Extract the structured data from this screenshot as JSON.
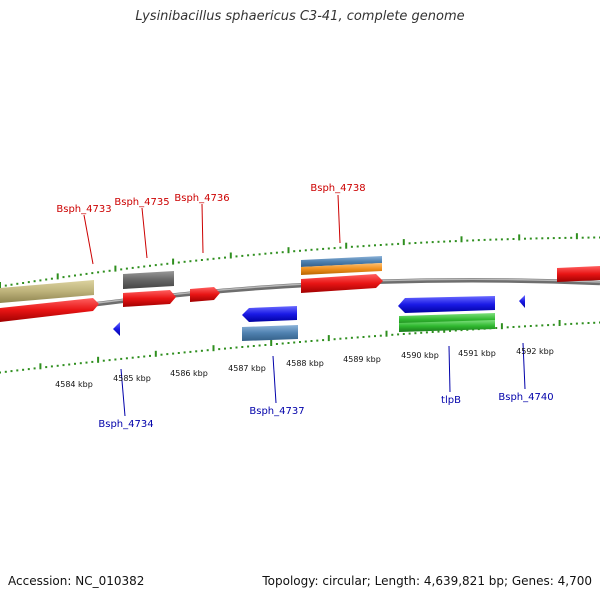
{
  "title": "Lysinibacillus sphaericus C3-41, complete genome",
  "footer": {
    "accession": "Accession: NC_010382",
    "summary": "Topology: circular; Length: 4,639,821 bp; Genes: 4,700"
  },
  "colors": {
    "background": "#ffffff",
    "backbone": "#8a8a8a",
    "tick": "#2f8f1f",
    "label_top": "#cc0000",
    "label_bottom": "#0000aa",
    "red": "#e81414",
    "blue": "#1a1ae6",
    "green": "#2fb82f",
    "tan": "#bdb27a",
    "gray": "#666666",
    "steelblue": "#4f81b0",
    "orange": "#f0901e"
  },
  "scale_labels": [
    "4584 kbp",
    "4585 kbp",
    "4586 kbp",
    "4587 kbp",
    "4588 kbp",
    "4589 kbp",
    "4590 kbp",
    "4591 kbp",
    "4592 kbp"
  ],
  "gene_labels_top": [
    "Bsph_4733",
    "Bsph_4735",
    "Bsph_4736",
    "Bsph_4738"
  ],
  "gene_labels_bottom": [
    "Bsph_4734",
    "Bsph_4737",
    "tlpB",
    "Bsph_4740"
  ]
}
